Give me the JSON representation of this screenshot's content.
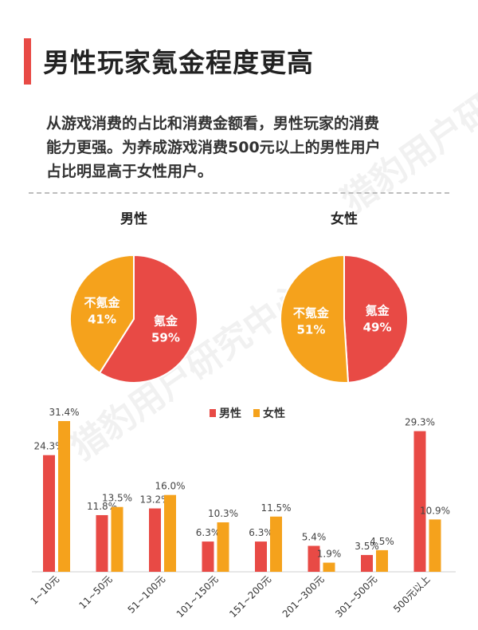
{
  "header": {
    "title": "男性玩家氪金程度更高"
  },
  "description": [
    "从游戏消费的占比和消费金额看，男性玩家的消费",
    "能力更强。为养成游戏消费500元以上的男性用户",
    "占比明显高于女性用户。"
  ],
  "watermark": "猎豹用户研究中心",
  "colors": {
    "red": "#e84a45",
    "orange": "#f5a21c"
  },
  "chart_data": [
    {
      "type": "pie",
      "title": "男性",
      "slices": [
        {
          "label": "氪金",
          "value": 59,
          "text": "59%"
        },
        {
          "label": "不氪金",
          "value": 41,
          "text": "41%"
        }
      ]
    },
    {
      "type": "pie",
      "title": "女性",
      "slices": [
        {
          "label": "氪金",
          "value": 49,
          "text": "49%"
        },
        {
          "label": "不氪金",
          "value": 51,
          "text": "51%"
        }
      ]
    },
    {
      "type": "bar",
      "categories": [
        "1~10元",
        "11~50元",
        "51~100元",
        "101~150元",
        "151~200元",
        "201~300元",
        "301~500元",
        "500元以上"
      ],
      "series": [
        {
          "name": "男性",
          "values": [
            24.3,
            11.8,
            13.2,
            6.3,
            6.3,
            5.4,
            3.5,
            29.3
          ]
        },
        {
          "name": "女性",
          "values": [
            31.4,
            13.5,
            16.0,
            10.3,
            11.5,
            1.9,
            4.5,
            10.9
          ]
        }
      ],
      "value_labels": [
        [
          "24.3%",
          "11.8%",
          "13.2%",
          "6.3%",
          "6.3%",
          "5.4%",
          "3.5%",
          "29.3%"
        ],
        [
          "31.4%",
          "13.5%",
          "16.0%",
          "10.3%",
          "11.5%",
          "1.9%",
          "4.5%",
          "10.9%"
        ]
      ],
      "legend": "top-center",
      "ylim": [
        0,
        32
      ]
    }
  ]
}
